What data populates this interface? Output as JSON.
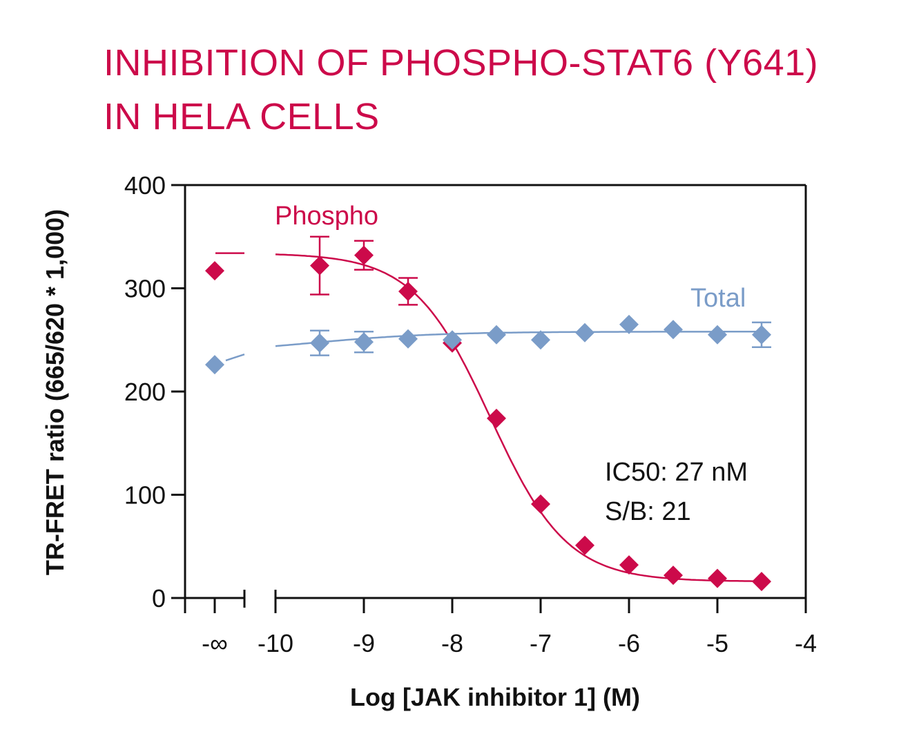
{
  "title": {
    "line1": "INHIBITION OF PHOSPHO-STAT6 (Y641)",
    "line2": "IN HELA CELLS"
  },
  "colors": {
    "phospho": "#cc0a4a",
    "total": "#7a9cc8",
    "axis": "#111111"
  },
  "chart_data": {
    "type": "scatter",
    "xlabel": "Log [JAK inhibitor 1] (M)",
    "ylabel": "TR-FRET ratio (665/620 * 1,000)",
    "xlim": [
      -10,
      -4
    ],
    "ylim": [
      0,
      400
    ],
    "x_ticks": [
      -10,
      -9,
      -8,
      -7,
      -6,
      -5,
      -4
    ],
    "x_tick_labels": [
      "-10",
      "-9",
      "-8",
      "-7",
      "-6",
      "-5",
      "-4"
    ],
    "x_break_tick_label": "-∞",
    "y_ticks": [
      0,
      100,
      200,
      300,
      400
    ],
    "y_tick_labels": [
      "0",
      "100",
      "200",
      "300",
      "400"
    ],
    "annotations": [
      "IC50: 27 nM",
      "S/B: 21"
    ],
    "series": [
      {
        "name": "Phospho",
        "color": "#cc0a4a",
        "fit": "sigmoidal",
        "zero_dose_y": 317,
        "x": [
          -9.5,
          -9.0,
          -8.5,
          -8.0,
          -7.5,
          -7.0,
          -6.5,
          -6.0,
          -5.5,
          -5.0,
          -4.5
        ],
        "y": [
          322,
          332,
          297,
          247,
          174,
          91,
          51,
          32,
          22,
          19,
          16
        ],
        "err": [
          28,
          14,
          13,
          0,
          0,
          0,
          0,
          0,
          0,
          0,
          0
        ],
        "fit_params": {
          "top": 334,
          "bottom": 16,
          "log_ic50": -7.57,
          "hill": 1.0
        }
      },
      {
        "name": "Total",
        "color": "#7a9cc8",
        "fit": "sigmoidal",
        "zero_dose_y": 226,
        "x": [
          -9.5,
          -9.0,
          -8.5,
          -8.0,
          -7.5,
          -7.0,
          -6.5,
          -6.0,
          -5.5,
          -5.0,
          -4.5
        ],
        "y": [
          247,
          248,
          251,
          250,
          255,
          250,
          257,
          265,
          260,
          255,
          255
        ],
        "err": [
          12,
          10,
          0,
          0,
          0,
          0,
          0,
          0,
          0,
          0,
          12
        ],
        "fit_params": {
          "top": 258,
          "bottom": 236,
          "log_ic50": -9.6,
          "hill": -0.6
        }
      }
    ]
  }
}
